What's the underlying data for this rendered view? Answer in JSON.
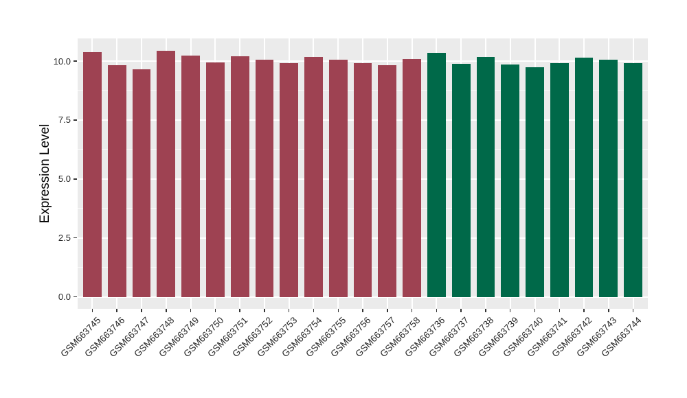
{
  "chart_data": {
    "type": "bar",
    "title": "",
    "xlabel": "",
    "ylabel": "Expression Level",
    "legend": "none",
    "grid": true,
    "ylim": [
      -0.51,
      10.96
    ],
    "y_ticks": [
      {
        "value": 0.0,
        "label": "0.0"
      },
      {
        "value": 2.5,
        "label": "2.5"
      },
      {
        "value": 5.0,
        "label": "5.0"
      },
      {
        "value": 7.5,
        "label": "7.5"
      },
      {
        "value": 10.0,
        "label": "10.0"
      }
    ],
    "y_minor_ticks": [
      1.25,
      3.75,
      6.25,
      8.75
    ],
    "groups": [
      {
        "name": "red-group",
        "color": "#9E4252"
      },
      {
        "name": "green-group",
        "color": "#006949"
      }
    ],
    "bars": [
      {
        "label": "GSM663745",
        "value": 10.38,
        "group": 0
      },
      {
        "label": "GSM663746",
        "value": 9.83,
        "group": 0
      },
      {
        "label": "GSM663747",
        "value": 9.65,
        "group": 0
      },
      {
        "label": "GSM663748",
        "value": 10.43,
        "group": 0
      },
      {
        "label": "GSM663749",
        "value": 10.23,
        "group": 0
      },
      {
        "label": "GSM663750",
        "value": 9.94,
        "group": 0
      },
      {
        "label": "GSM663751",
        "value": 10.21,
        "group": 0
      },
      {
        "label": "GSM663752",
        "value": 10.07,
        "group": 0
      },
      {
        "label": "GSM663753",
        "value": 9.9,
        "group": 0
      },
      {
        "label": "GSM663754",
        "value": 10.17,
        "group": 0
      },
      {
        "label": "GSM663755",
        "value": 10.05,
        "group": 0
      },
      {
        "label": "GSM663756",
        "value": 9.9,
        "group": 0
      },
      {
        "label": "GSM663757",
        "value": 9.83,
        "group": 0
      },
      {
        "label": "GSM663758",
        "value": 10.1,
        "group": 0
      },
      {
        "label": "GSM663736",
        "value": 10.36,
        "group": 1
      },
      {
        "label": "GSM663737",
        "value": 9.89,
        "group": 1
      },
      {
        "label": "GSM663738",
        "value": 10.18,
        "group": 1
      },
      {
        "label": "GSM663739",
        "value": 9.84,
        "group": 1
      },
      {
        "label": "GSM663740",
        "value": 9.75,
        "group": 1
      },
      {
        "label": "GSM663741",
        "value": 9.92,
        "group": 1
      },
      {
        "label": "GSM663742",
        "value": 10.15,
        "group": 1
      },
      {
        "label": "GSM663743",
        "value": 10.06,
        "group": 1
      },
      {
        "label": "GSM663744",
        "value": 9.92,
        "group": 1
      }
    ]
  },
  "style": {
    "background": "#FFFFFF",
    "panel_background": "#EBEBEB",
    "grid_major_color": "#FFFFFF",
    "grid_minor_color": "rgba(255,255,255,0.75)",
    "tick_color": "#333333",
    "axis_text_color": "#262626",
    "axis_title_color": "#000000"
  }
}
